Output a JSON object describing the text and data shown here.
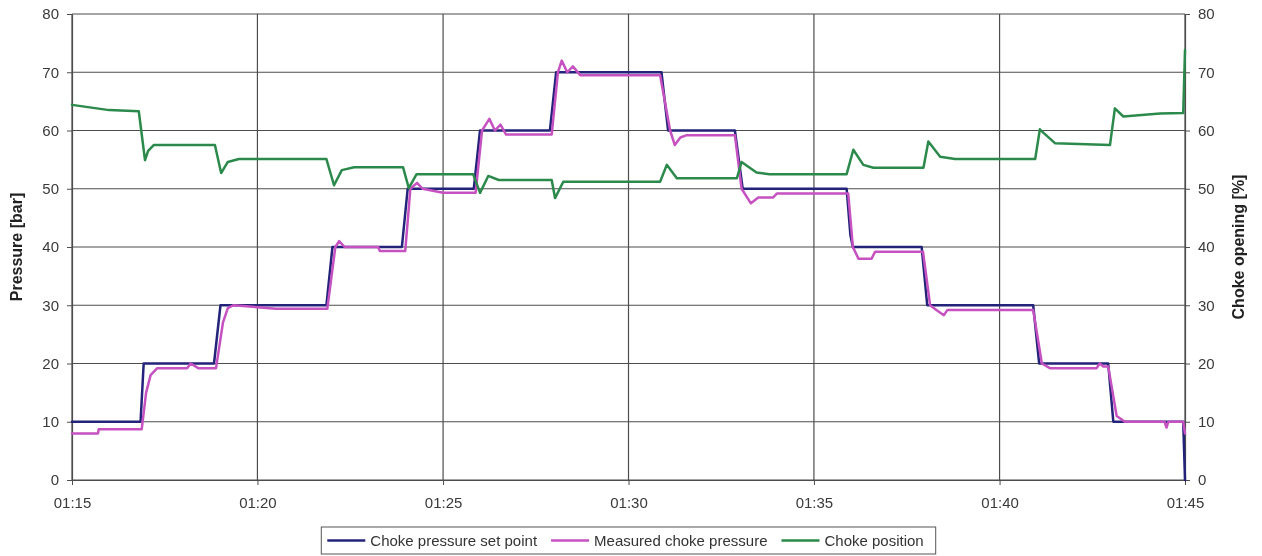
{
  "chart_data": {
    "type": "line",
    "xlim": [
      1.25,
      1.75
    ],
    "xticks": [
      {
        "value": 1.25,
        "label": "01:15"
      },
      {
        "value": 1.3333,
        "label": "01:20"
      },
      {
        "value": 1.4167,
        "label": "01:25"
      },
      {
        "value": 1.5,
        "label": "01:30"
      },
      {
        "value": 1.5833,
        "label": "01:35"
      },
      {
        "value": 1.6667,
        "label": "01:40"
      },
      {
        "value": 1.75,
        "label": "01:45"
      }
    ],
    "ylabel": "Pressure [bar]",
    "y2label": "Choke opening [%]",
    "ylim": [
      0,
      80
    ],
    "yticks": [
      0,
      10,
      20,
      30,
      40,
      50,
      60,
      70,
      80
    ],
    "y2lim": [
      0,
      80
    ],
    "y2ticks": [
      0,
      10,
      20,
      30,
      40,
      50,
      60,
      70,
      80
    ],
    "grid": true,
    "legend": "bottom",
    "series": [
      {
        "name": "Choke pressure set point",
        "color": "#23237a",
        "x": [
          1.25,
          1.2808,
          1.2822,
          1.3138,
          1.3167,
          1.3643,
          1.367,
          1.3982,
          1.4008,
          1.4305,
          1.4333,
          1.4647,
          1.4675,
          1.5148,
          1.5178,
          1.5478,
          1.5513,
          1.598,
          1.5997,
          1.6008,
          1.6317,
          1.6342,
          1.6818,
          1.6845,
          1.7155,
          1.7178,
          1.7492,
          1.75
        ],
        "values": [
          10,
          10,
          20,
          20,
          30,
          30,
          40,
          40,
          50,
          50,
          60,
          60,
          70,
          70,
          60,
          60,
          50,
          50,
          42,
          40,
          40,
          30,
          30,
          20,
          20,
          10,
          10,
          0
        ]
      },
      {
        "name": "Measured choke pressure",
        "color": "#c552c0",
        "x": [
          1.25,
          1.2617,
          1.262,
          1.2813,
          1.2833,
          1.2853,
          1.2883,
          1.3017,
          1.3033,
          1.3067,
          1.3147,
          1.3178,
          1.32,
          1.3225,
          1.3417,
          1.3647,
          1.3683,
          1.37,
          1.3725,
          1.3875,
          1.3883,
          1.3997,
          1.402,
          1.405,
          1.4075,
          1.4167,
          1.4313,
          1.4342,
          1.4375,
          1.44,
          1.4425,
          1.445,
          1.4655,
          1.4683,
          1.47,
          1.4725,
          1.475,
          1.4783,
          1.5142,
          1.5187,
          1.5208,
          1.5233,
          1.5262,
          1.5478,
          1.5508,
          1.555,
          1.5583,
          1.565,
          1.5667,
          1.5987,
          1.6008,
          1.6033,
          1.6092,
          1.6108,
          1.6323,
          1.6355,
          1.6383,
          1.6417,
          1.6433,
          1.6818,
          1.6857,
          1.6893,
          1.7103,
          1.7117,
          1.7133,
          1.7155,
          1.7193,
          1.723,
          1.7408,
          1.7417,
          1.7425,
          1.7492,
          1.75
        ],
        "values": [
          8,
          8,
          8.7,
          8.7,
          15,
          18,
          19.2,
          19.2,
          20,
          19.2,
          19.2,
          27,
          29.5,
          30,
          29.4,
          29.4,
          40,
          41,
          40,
          40,
          39.3,
          39.3,
          50,
          51,
          50,
          49.3,
          49.3,
          60,
          62,
          60,
          61,
          59.3,
          59.3,
          70,
          72,
          70,
          71,
          69.5,
          69.5,
          60,
          57.5,
          58.8,
          59.2,
          59.2,
          50,
          47.5,
          48.5,
          48.5,
          49.2,
          49.2,
          40,
          38,
          38,
          39.2,
          39.2,
          30,
          29.2,
          28.3,
          29.2,
          29.2,
          20,
          19.2,
          19.2,
          20,
          19.5,
          19.5,
          11,
          10,
          10,
          9,
          10,
          10,
          8
        ]
      },
      {
        "name": "Choke position",
        "color": "#2b8a4b",
        "axis": "y2",
        "x": [
          1.25,
          1.2667,
          1.28,
          1.2828,
          1.2842,
          1.2867,
          1.3142,
          1.317,
          1.32,
          1.325,
          1.3643,
          1.3677,
          1.3712,
          1.3767,
          1.3987,
          1.4013,
          1.4048,
          1.4302,
          1.4333,
          1.437,
          1.4417,
          1.4655,
          1.467,
          1.4707,
          1.5142,
          1.5172,
          1.5217,
          1.5487,
          1.5508,
          1.5575,
          1.5633,
          1.598,
          1.601,
          1.6055,
          1.61,
          1.6325,
          1.6347,
          1.64,
          1.6467,
          1.6827,
          1.6848,
          1.6867,
          1.6917,
          1.7163,
          1.7185,
          1.7223,
          1.7388,
          1.7492,
          1.75
        ],
        "values": [
          64.4,
          63.5,
          63.3,
          54.9,
          56.5,
          57.5,
          57.5,
          52.7,
          54.6,
          55.1,
          55.1,
          50.6,
          53.2,
          53.7,
          53.7,
          50.1,
          52.5,
          52.5,
          49.3,
          52.2,
          51.5,
          51.5,
          48.4,
          51.2,
          51.2,
          54.1,
          51.8,
          51.8,
          54.6,
          52.8,
          52.5,
          52.5,
          56.7,
          54.1,
          53.6,
          53.6,
          58.1,
          55.5,
          55.1,
          55.1,
          60.2,
          59.5,
          57.8,
          57.5,
          63.8,
          62.4,
          62.9,
          63,
          73.8
        ]
      }
    ]
  }
}
